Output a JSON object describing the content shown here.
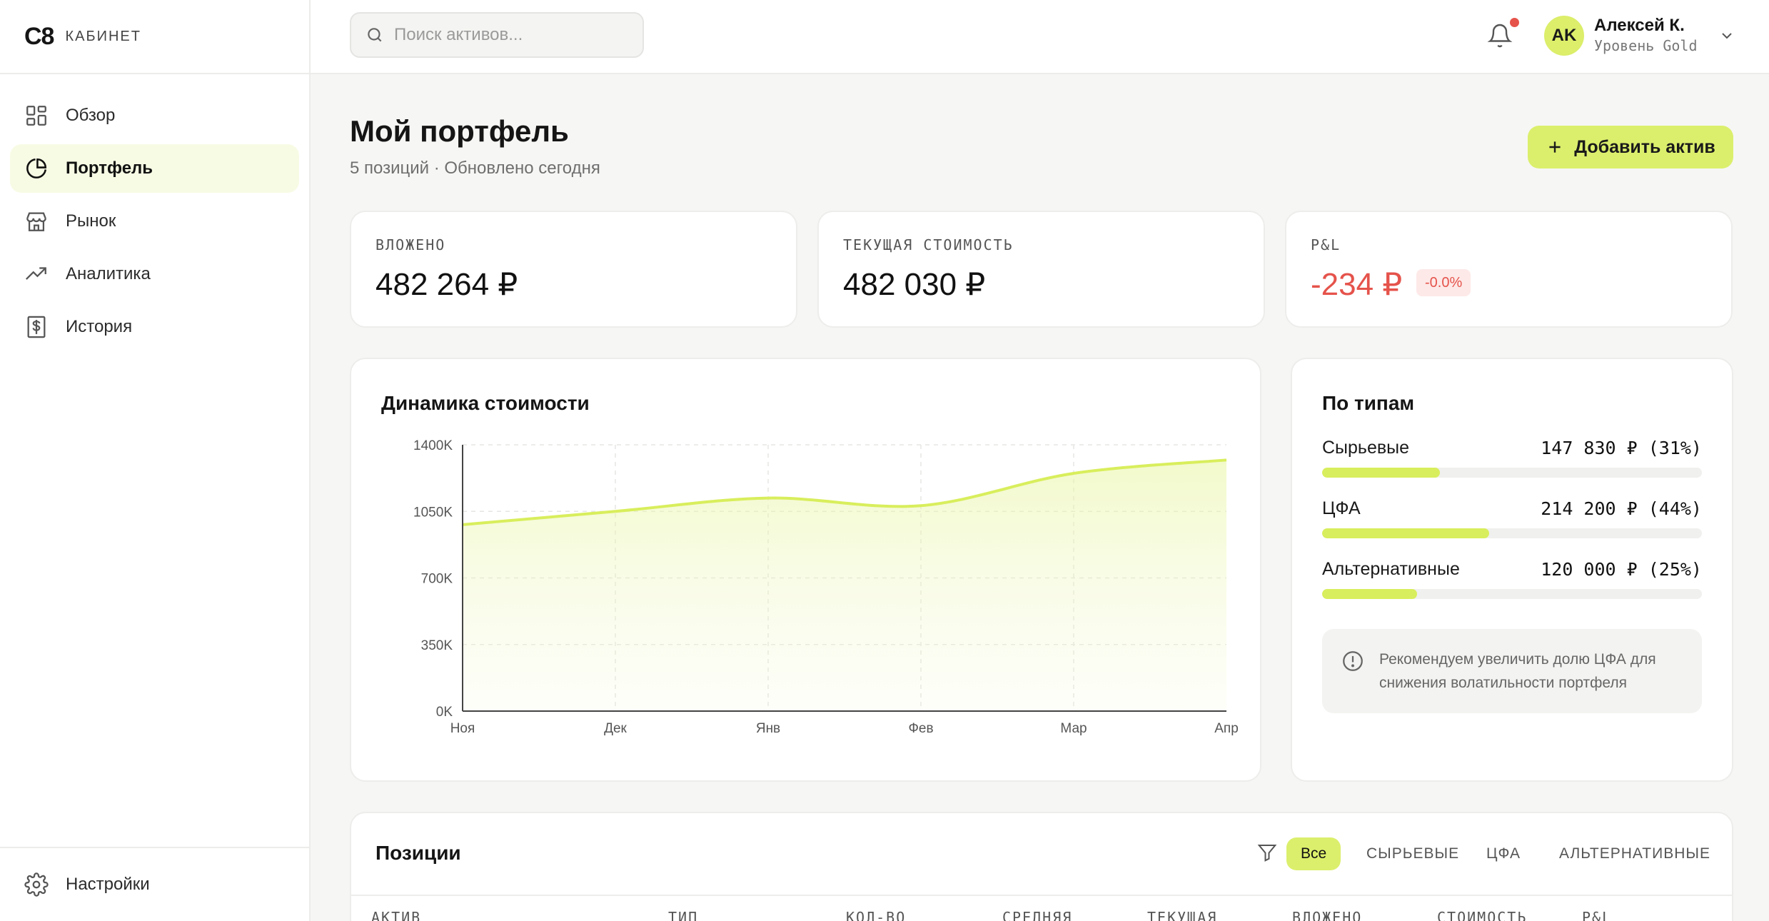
{
  "brand": {
    "logo": "C8",
    "subtitle": "КАБИНЕТ"
  },
  "sidebar": {
    "items": [
      {
        "label": "Обзор",
        "icon": "grid-icon",
        "active": false
      },
      {
        "label": "Портфель",
        "icon": "pie-chart-icon",
        "active": true
      },
      {
        "label": "Рынок",
        "icon": "store-icon",
        "active": false
      },
      {
        "label": "Аналитика",
        "icon": "trend-up-icon",
        "active": false
      },
      {
        "label": "История",
        "icon": "dollar-receipt-icon",
        "active": false
      }
    ],
    "settings_label": "Настройки"
  },
  "topbar": {
    "search_placeholder": "Поиск активов...",
    "user": {
      "initials": "AK",
      "name": "Алексей К.",
      "level": "Уровень Gold"
    }
  },
  "header": {
    "title": "Мой портфель",
    "subtitle": "5 позиций · Обновлено сегодня",
    "add_button": "Добавить актив"
  },
  "kpis": [
    {
      "label": "ВЛОЖЕНО",
      "value": "482 264 ₽"
    },
    {
      "label": "ТЕКУЩАЯ СТОИМОСТЬ",
      "value": "482 030 ₽"
    },
    {
      "label": "P&L",
      "value": "-234 ₽",
      "badge": "-0.0%"
    }
  ],
  "colors": {
    "accent": "#dcef6c",
    "negative": "#e5534b",
    "line": "#d9ee5c"
  },
  "chart_data": {
    "type": "area",
    "title": "Динамика стоимости",
    "categories": [
      "Ноя",
      "Дек",
      "Янв",
      "Фев",
      "Мар",
      "Апр"
    ],
    "series": [
      {
        "values": [
          980,
          1050,
          1120,
          1080,
          1250,
          1320
        ]
      }
    ],
    "yticks": [
      "1400K",
      "1050K",
      "700K",
      "350K",
      "0K"
    ],
    "ylim": [
      0,
      1400
    ],
    "grid": true
  },
  "types": {
    "title": "По типам",
    "rows": [
      {
        "name": "Сырьевые",
        "value": "147 830 ₽ (31%)",
        "share": 0.31
      },
      {
        "name": "ЦФА",
        "value": "214 200 ₽ (44%)",
        "share": 0.44
      },
      {
        "name": "Альтернативные",
        "value": "120 000 ₽ (25%)",
        "share": 0.25
      }
    ],
    "advice": "Рекомендуем увеличить долю ЦФА для снижения волатильности портфеля"
  },
  "positions": {
    "title": "Позиции",
    "filters": [
      "Все",
      "СЫРЬЕВЫЕ",
      "ЦФА",
      "АЛЬТЕРНАТИВНЫЕ"
    ],
    "columns": [
      "АКТИВ",
      "ТИП",
      "КОЛ-ВО",
      "СРЕДНЯЯ",
      "ТЕКУЩАЯ",
      "ВЛОЖЕНО",
      "СТОИМОСТЬ",
      "P&L"
    ]
  }
}
